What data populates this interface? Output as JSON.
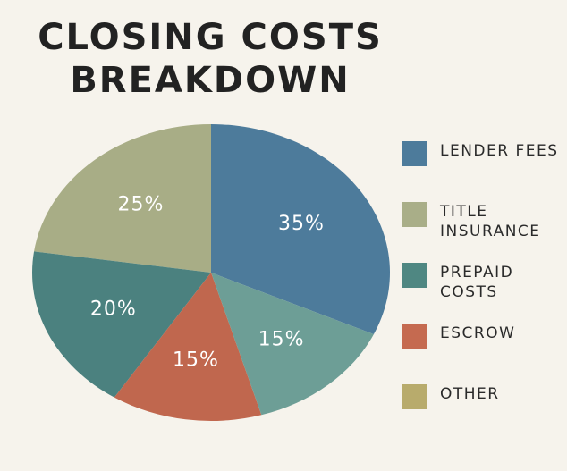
{
  "chart_data": {
    "type": "pie",
    "title": "CLOSING COSTS BREAKDOWN",
    "categories": [
      "LENDER FEES",
      "TITLE INSURANCE",
      "PREPAID COSTS",
      "ESCROW",
      "OTHER"
    ],
    "values": [
      35,
      25,
      20,
      15,
      15
    ],
    "value_labels": [
      "35%",
      "25%",
      "20%",
      "15%",
      "15%"
    ],
    "colors": [
      "#4d7b9b",
      "#a8ad86",
      "#4b817f",
      "#c0674e",
      "#6d9e96"
    ],
    "legend_colors": [
      "#4d7b9b",
      "#a9ae88",
      "#4f8782",
      "#c56a50",
      "#b8ab6c"
    ],
    "direction": "counterclockwise",
    "legend": "right"
  }
}
